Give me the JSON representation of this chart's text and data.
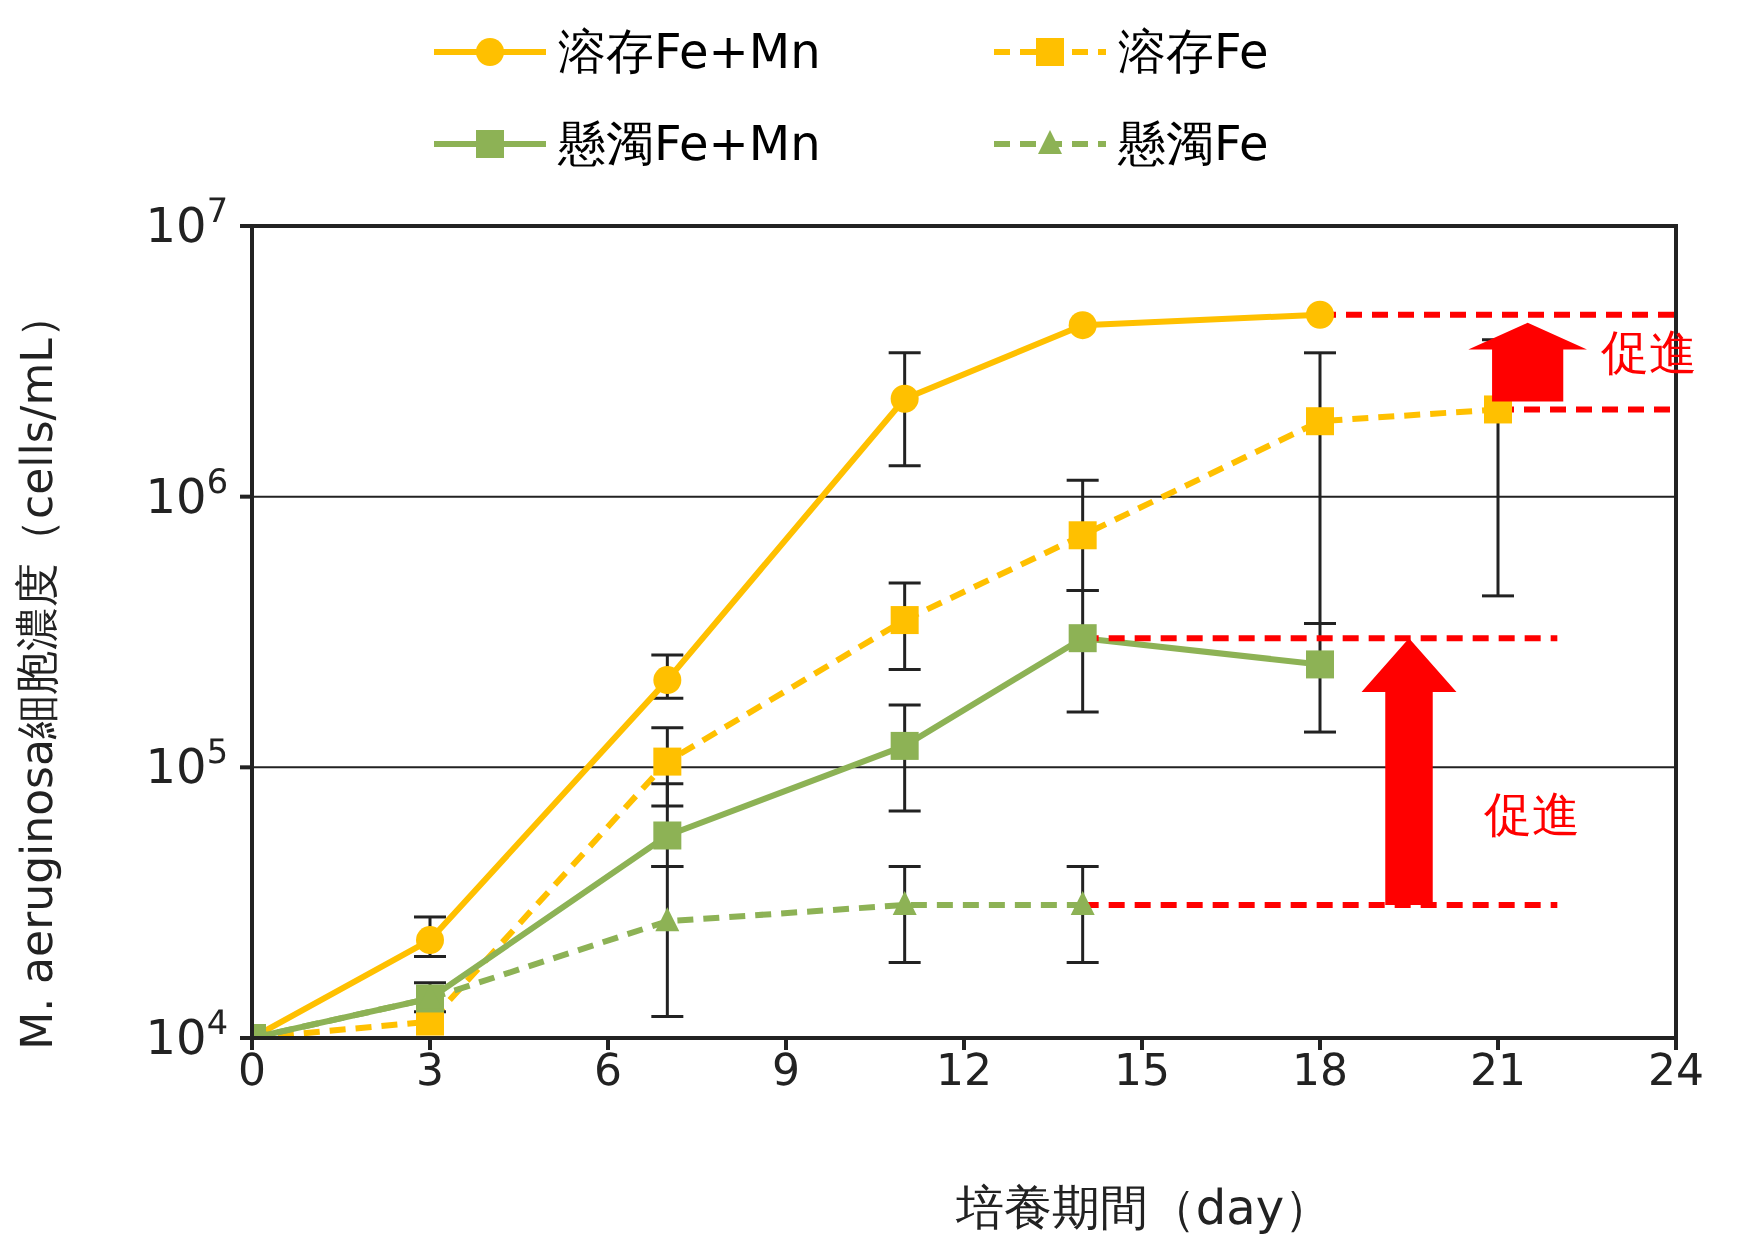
{
  "chart_data": {
    "type": "line",
    "xlabel": "培養期間（day）",
    "ylabel": "M. aeruginosa細胞濃度（cells/mL）",
    "log": "y",
    "xlim": [
      0,
      24
    ],
    "xticks": [
      0,
      3,
      6,
      9,
      12,
      15,
      18,
      21,
      24
    ],
    "ylim": [
      10000,
      10000000
    ],
    "yticks": [
      {
        "value": 10000,
        "label": "10$^{4}$"
      },
      {
        "value": 100000,
        "label": "10$^{5}$"
      },
      {
        "value": 1000000,
        "label": "10$^{6}$"
      },
      {
        "value": 10000000,
        "label": "10$^{7}$"
      }
    ],
    "grid": "y",
    "legend": "top",
    "series": [
      {
        "name": "溶存Fe+Mn",
        "color": "#ffc000",
        "marker": "circle",
        "line_style": "solid",
        "x": [
          0,
          3,
          7,
          11,
          14,
          18
        ],
        "values": [
          10000,
          23000,
          210000,
          2300000,
          4300000,
          4700000
        ],
        "errors": [
          null,
          [
            20000,
            28000
          ],
          [
            180000,
            260000
          ],
          [
            1300000,
            3400000
          ],
          null,
          null
        ]
      },
      {
        "name": "溶存Fe",
        "color": "#ffc000",
        "marker": "square",
        "line_style": "dashed",
        "x": [
          0,
          3,
          7,
          11,
          14,
          18,
          21
        ],
        "values": [
          10000,
          11500,
          105000,
          350000,
          720000,
          1900000,
          2100000
        ],
        "errors": [
          null,
          null,
          [
            72000,
            140000
          ],
          [
            230000,
            480000
          ],
          [
            450000,
            1150000
          ],
          [
            340000,
            3400000
          ],
          [
            430000,
            3800000
          ]
        ]
      },
      {
        "name": "懸濁Fe+Mn",
        "color": "#8db255",
        "marker": "square",
        "line_style": "solid",
        "x": [
          0,
          3,
          7,
          11,
          14,
          18
        ],
        "values": [
          10000,
          14000,
          56000,
          120000,
          300000,
          240000
        ],
        "errors": [
          null,
          [
            12500,
            16000
          ],
          [
            43000,
            87000
          ],
          [
            69000,
            170000
          ],
          [
            160000,
            450000
          ],
          [
            135000,
            340000
          ]
        ]
      },
      {
        "name": "懸濁Fe",
        "color": "#8db255",
        "marker": "triangle",
        "line_style": "dashed",
        "x": [
          0,
          3,
          7,
          11,
          14
        ],
        "values": [
          10000,
          14000,
          27000,
          31000,
          31000
        ],
        "errors": [
          null,
          null,
          [
            12000,
            43000
          ],
          [
            19000,
            43000
          ],
          [
            19000,
            43000
          ]
        ]
      },
      {
        "type": "line",
        "color": "#ff0000",
        "marker": "none",
        "line_style": "dashed",
        "x": [
          18,
          24
        ],
        "values": [
          4700000,
          4700000
        ]
      },
      {
        "type": "line",
        "color": "#ff0000",
        "marker": "none",
        "line_style": "dashed",
        "x": [
          21,
          24
        ],
        "values": [
          2100000,
          2100000
        ]
      },
      {
        "type": "line",
        "color": "#ff0000",
        "marker": "none",
        "line_style": "dashed",
        "x": [
          14,
          22
        ],
        "values": [
          300000,
          300000
        ]
      },
      {
        "type": "line",
        "color": "#ff0000",
        "marker": "none",
        "line_style": "dashed",
        "x": [
          14,
          22
        ],
        "values": [
          31000,
          31000
        ]
      }
    ],
    "annotations": [
      "促進",
      "促進"
    ]
  }
}
